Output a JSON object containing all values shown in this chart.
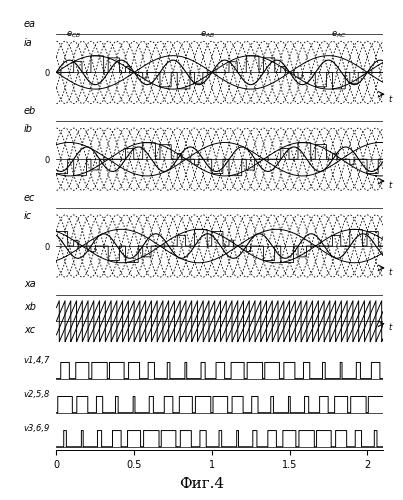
{
  "title": "Фиг.4",
  "x_max": 2.1,
  "x_ticks": [
    0,
    0.5,
    1,
    1.5,
    2
  ],
  "x_tick_labels": [
    "0",
    "0.5",
    "1",
    "1.5",
    "2"
  ],
  "bg_color": "#ffffff",
  "line_color": "#000000",
  "f_in": 3.0,
  "f_out": 1.0,
  "f_sw": 9.0,
  "amp_env": 0.75,
  "amp_src": 0.55,
  "amp_line": 1.55
}
